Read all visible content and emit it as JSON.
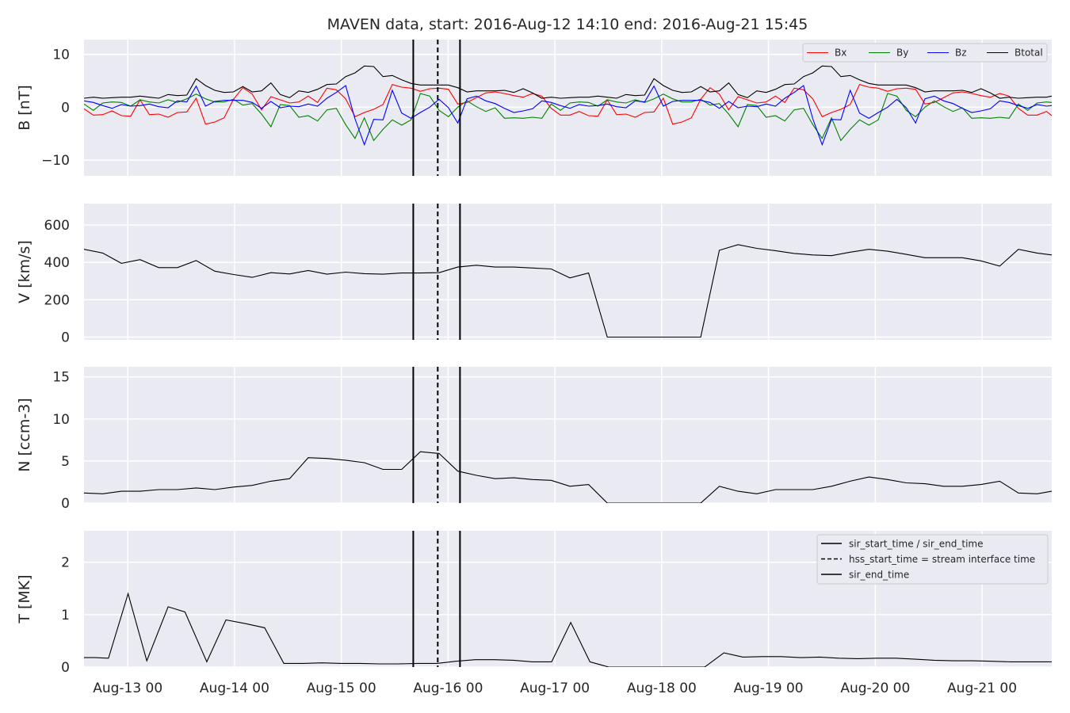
{
  "title": "MAVEN data, start: 2016-Aug-12 14:10  end: 2016-Aug-21 15:45",
  "x_tick_labels": [
    "Aug-13 00",
    "Aug-14 00",
    "Aug-15 00",
    "Aug-16 00",
    "Aug-17 00",
    "Aug-18 00",
    "Aug-19 00",
    "Aug-20 00",
    "Aug-21 00"
  ],
  "markers": [
    {
      "hours_from_start": 74.0,
      "style": "solid"
    },
    {
      "hours_from_start": 79.5,
      "style": "dashed"
    },
    {
      "hours_from_start": 84.5,
      "style": "solid"
    }
  ],
  "legend_lines": {
    "entries": [
      {
        "label": "sir_start_time / sir_end_time",
        "style": "solid"
      },
      {
        "label": "hss_start_time = stream interface time",
        "style": "dashed"
      },
      {
        "label": "sir_end_time",
        "style": "solid"
      }
    ]
  },
  "colors": {
    "Bx": "#ff0000",
    "By": "#008000",
    "Bz": "#0000ff",
    "Btotal": "#000000",
    "background": "#eaeaf2",
    "grid": "#ffffff"
  },
  "chart_data": [
    {
      "type": "line",
      "ylabel": "B [nT]",
      "ylim": [
        -13,
        12.8
      ],
      "yticks": [
        -10,
        0,
        10
      ],
      "legend_position": "top-right",
      "x_units": "hours since 2016-Aug-12 14:10",
      "x": [
        0,
        2.1,
        4.2,
        6.3,
        8.4,
        10.5,
        12.6,
        14.7,
        16.8,
        18.9,
        21,
        23.1,
        25.2,
        27.3,
        29.4,
        31.5,
        33.6,
        35.7,
        37.8,
        39.9,
        42,
        44.1,
        46.2,
        48.3,
        50.4,
        52.5,
        54.6,
        56.7,
        58.8,
        60.9,
        63,
        65.1,
        67.2,
        69.3,
        71.4,
        73.5,
        75.6,
        77.7,
        79.8,
        81.9,
        84,
        86.1,
        88.2,
        90.3,
        92.4,
        94.5,
        96.6,
        98.7,
        100.8,
        102.9,
        105,
        107.1,
        109.2,
        111.3,
        113.4,
        115.5,
        117.6,
        119.7,
        121.8,
        123.9,
        126,
        128.1,
        130.2,
        132.3,
        134.4,
        136.5,
        138.6,
        140.7,
        142.8,
        144.9,
        147,
        149.1,
        151.2,
        153.3,
        155.4,
        157.5,
        159.6,
        161.7,
        163.8,
        165.9,
        168,
        170.1,
        172.2,
        174.3,
        176.4,
        178.5,
        180.6,
        182.7,
        184.8,
        186.9,
        189,
        191.1,
        193.2,
        195.3,
        197.4,
        199.5,
        201.6,
        203.7,
        205.8,
        207.9,
        210,
        212.1,
        214.2,
        216.3,
        217.5
      ],
      "series": [
        {
          "name": "Bx",
          "values": [
            -0.3,
            -1.5,
            -1.4,
            -0.7,
            -1.6,
            -1.7,
            1.4,
            -1.4,
            -1.3,
            -1.9,
            -1,
            -0.9,
            1.7,
            -3.2,
            -2.8,
            -2,
            1.5,
            3.7,
            2.5,
            -0.5,
            2,
            1.4,
            0.8,
            1,
            2.1,
            0.9,
            3.6,
            3.3,
            1.6,
            -1.8,
            -1,
            -0.4,
            0.5,
            4.3,
            3.8,
            3.6,
            3,
            3.5,
            3.6,
            3.4,
            0.6,
            0.9,
            1.8,
            2.7,
            2.9,
            2.6,
            2.2,
            1.9,
            2.6,
            2.1,
            -0.2,
            -1.5,
            -1.5,
            -0.8,
            -1.6,
            -1.7,
            1.4,
            -1.4,
            -1.3,
            -1.9,
            -1,
            -0.9,
            1.7,
            -3.2,
            -2.8,
            -2,
            1.5,
            3.7,
            2.5,
            -0.5,
            2,
            1.4,
            0.8,
            1,
            2.1,
            0.9,
            3.6,
            3.3,
            1.6,
            -1.8,
            -1,
            -0.4,
            0.5,
            4.3,
            3.8,
            3.6,
            3,
            3.5,
            3.6,
            3.4,
            0.6,
            0.9,
            1.8,
            2.7,
            2.9,
            2.6,
            2.2,
            1.9,
            2.6,
            2.1,
            -0.2,
            -1.5,
            -1.5,
            -0.8,
            -1.6
          ]
        },
        {
          "name": "By",
          "values": [
            0.6,
            -0.6,
            0.8,
            1,
            0.9,
            0.2,
            1.4,
            1,
            0.8,
            1.4,
            0.9,
            1.6,
            2.5,
            1.6,
            1,
            1,
            1.5,
            0.4,
            0.7,
            -1.3,
            -3.7,
            0.5,
            0.3,
            -1.9,
            -1.6,
            -2.6,
            -0.5,
            -0.2,
            -3.3,
            -5.9,
            -2,
            -6.3,
            -4.2,
            -2.4,
            -3.4,
            -2.4,
            2.6,
            2.1,
            -0.6,
            -1.8,
            0,
            1.2,
            0.1,
            -0.8,
            -0.1,
            -2.1,
            -2,
            -2.1,
            -1.9,
            -2.1,
            0.6,
            -0.6,
            0.8,
            1,
            0.9,
            0.2,
            1.4,
            1,
            0.8,
            1.4,
            0.9,
            1.6,
            2.5,
            1.6,
            1,
            1,
            1.5,
            0.4,
            0.7,
            -1.3,
            -3.7,
            0.5,
            0.3,
            -1.9,
            -1.6,
            -2.6,
            -0.5,
            -0.2,
            -3.3,
            -5.9,
            -2,
            -6.3,
            -4.2,
            -2.4,
            -3.4,
            -2.4,
            2.6,
            2.1,
            -0.6,
            -1.8,
            0,
            1.2,
            0.1,
            -0.8,
            -0.1,
            -2.1,
            -2,
            -2.1,
            -1.9,
            -2.1,
            0.6,
            -0.6,
            0.8,
            1,
            0.9
          ]
        },
        {
          "name": "Bz",
          "values": [
            1.2,
            0.9,
            0.3,
            -0.2,
            0.5,
            0.2,
            0.3,
            0.6,
            0.1,
            -0.1,
            1.2,
            1,
            4,
            0.2,
            1.1,
            1.3,
            1.3,
            1.3,
            0.9,
            -0.2,
            1.1,
            -0.1,
            0.2,
            0.1,
            0.6,
            0.2,
            1.7,
            2.8,
            4.1,
            -2.2,
            -7.1,
            -2.3,
            -2.4,
            3.2,
            -1.1,
            -2.1,
            -1,
            0,
            1.5,
            -0.1,
            -3,
            1.6,
            2.1,
            1.2,
            0.7,
            -0.2,
            -1,
            -0.7,
            -0.3,
            1.2,
            0.9,
            0.3,
            -0.2,
            0.5,
            0.2,
            0.3,
            0.6,
            0.1,
            -0.1,
            1.2,
            1,
            4,
            0.2,
            1.1,
            1.3,
            1.3,
            1.3,
            0.9,
            -0.2,
            1.1,
            -0.1,
            0.2,
            0.1,
            0.6,
            0.2,
            1.7,
            2.8,
            4.1,
            -2.2,
            -7.1,
            -2.3,
            -2.4,
            3.2,
            -1.1,
            -2.1,
            -1,
            0,
            1.5,
            -0.1,
            -3,
            1.6,
            2.1,
            1.2,
            0.7,
            -0.2,
            -1,
            -0.7,
            -0.3,
            1.2,
            0.9,
            0.3,
            -0.2,
            0.5,
            0.2,
            0.3
          ]
        },
        {
          "name": "Btotal",
          "values": [
            1.7,
            1.9,
            1.7,
            1.8,
            1.9,
            1.9,
            2.1,
            1.9,
            1.7,
            2.4,
            2.2,
            2.3,
            5.4,
            4.1,
            3.2,
            2.8,
            2.9,
            3.9,
            2.9,
            3.1,
            4.6,
            2.4,
            1.8,
            3.1,
            2.8,
            3.4,
            4.3,
            4.4,
            5.8,
            6.5,
            7.8,
            7.7,
            5.8,
            6,
            5.2,
            4.5,
            4.2,
            4.2,
            4.2,
            4.2,
            3.7,
            2.9,
            3.1,
            3.1,
            3.1,
            3.2,
            2.8,
            3.5,
            2.7,
            1.7,
            1.9,
            1.7,
            1.8,
            1.9,
            1.9,
            2.1,
            1.9,
            1.7,
            2.4,
            2.2,
            2.3,
            5.4,
            4.1,
            3.2,
            2.8,
            2.9,
            3.9,
            2.9,
            3.1,
            4.6,
            2.4,
            1.8,
            3.1,
            2.8,
            3.4,
            4.3,
            4.4,
            5.8,
            6.5,
            7.8,
            7.7,
            5.8,
            6,
            5.2,
            4.5,
            4.2,
            4.2,
            4.2,
            4.2,
            3.7,
            2.9,
            3.1,
            3.1,
            3.1,
            3.2,
            2.8,
            3.5,
            2.7,
            1.7,
            1.9,
            1.7,
            1.8,
            1.9,
            1.9,
            2.1
          ]
        }
      ]
    },
    {
      "type": "line",
      "ylabel": "V [km/s]",
      "ylim": [
        -15,
        715
      ],
      "yticks": [
        0,
        200,
        400,
        600
      ],
      "x_units": "hours since 2016-Aug-12 14:10",
      "series": [
        {
          "name": "V",
          "x": [
            0,
            4.2,
            8.4,
            12.6,
            16.8,
            21,
            25.2,
            29.4,
            33.6,
            37.8,
            42,
            46.2,
            50.4,
            54.6,
            58.8,
            63,
            67.2,
            71.4,
            75.6,
            79.8,
            84,
            88.2,
            92.4,
            96.6,
            100.8,
            105,
            109.2,
            113.4,
            117.6,
            121.8,
            126,
            130.2,
            134.4,
            138.6,
            142.8,
            147,
            151.2,
            155.4,
            159.6,
            163.8,
            168,
            172.2,
            176.4,
            180.6,
            184.8,
            189,
            193.2,
            197.4,
            201.6,
            205.8,
            210,
            214.2,
            217.5
          ],
          "values": [
            470,
            450,
            395,
            415,
            372,
            372,
            410,
            353,
            335,
            320,
            345,
            338,
            357,
            337,
            348,
            340,
            337,
            343,
            343,
            345,
            375,
            385,
            375,
            375,
            370,
            365,
            317,
            343,
            0,
            0,
            0,
            0,
            0,
            0,
            465,
            495,
            475,
            463,
            448,
            440,
            436,
            455,
            470,
            460,
            443,
            425,
            425,
            425,
            408,
            380,
            470,
            450,
            440
          ]
        }
      ]
    },
    {
      "type": "line",
      "ylabel": "N [ccm-3]",
      "ylim": [
        0,
        16.2
      ],
      "yticks": [
        0,
        5,
        10,
        15
      ],
      "x_units": "hours since 2016-Aug-12 14:10",
      "series": [
        {
          "name": "N",
          "x": [
            0,
            4.2,
            8.4,
            12.6,
            16.8,
            21,
            25.2,
            29.4,
            33.6,
            37.8,
            42,
            46.2,
            50.4,
            54.6,
            58.8,
            63,
            67.2,
            71.4,
            75.6,
            79.8,
            84,
            88.2,
            92.4,
            96.6,
            100.8,
            105,
            109.2,
            113.4,
            117.6,
            121.8,
            126,
            130.2,
            134.4,
            138.6,
            142.8,
            147,
            151.2,
            155.4,
            159.6,
            163.8,
            168,
            172.2,
            176.4,
            180.6,
            184.8,
            189,
            193.2,
            197.4,
            201.6,
            205.8,
            210,
            214.2,
            217.5
          ],
          "values": [
            1.2,
            1.1,
            1.4,
            1.4,
            1.6,
            1.6,
            1.8,
            1.6,
            1.9,
            2.1,
            2.6,
            2.9,
            5.4,
            5.3,
            5.1,
            4.8,
            4,
            4,
            6.1,
            5.9,
            3.8,
            3.3,
            2.9,
            3,
            2.8,
            2.7,
            2,
            2.2,
            0,
            0,
            0,
            0,
            0,
            0,
            2,
            1.4,
            1.1,
            1.6,
            1.6,
            1.6,
            2,
            2.6,
            3.1,
            2.8,
            2.4,
            2.3,
            2,
            2,
            2.2,
            2.6,
            1.2,
            1.1,
            1.4
          ]
        }
      ]
    },
    {
      "type": "line",
      "ylabel": "T [MK]",
      "ylim": [
        0,
        2.6
      ],
      "yticks": [
        0,
        1,
        2
      ],
      "legend_position": "top-right",
      "x_units": "hours since 2016-Aug-12 14:10",
      "series": [
        {
          "name": "T",
          "x": [
            0,
            2.5,
            5.5,
            9.9,
            14.1,
            18.9,
            22.7,
            27.6,
            31.9,
            36.2,
            40.6,
            44.9,
            49.2,
            53.5,
            57.8,
            62.1,
            66.4,
            70.7,
            75,
            79.3,
            83.6,
            87.9,
            92.2,
            96.5,
            100.8,
            105.1,
            109.4,
            113.7,
            117.9,
            122.3,
            126.6,
            130.9,
            135.2,
            139.5,
            143.8,
            148.1,
            152.4,
            156.7,
            161,
            165.3,
            169.6,
            173.9,
            178.2,
            182.5,
            186.8,
            191.1,
            195.4,
            199.7,
            204,
            208.3,
            212.6,
            217.5
          ],
          "values": [
            0.18,
            0.18,
            0.17,
            1.4,
            0.12,
            1.15,
            1.05,
            0.1,
            0.9,
            0.83,
            0.75,
            0.07,
            0.07,
            0.08,
            0.07,
            0.07,
            0.06,
            0.06,
            0.07,
            0.07,
            0.11,
            0.14,
            0.14,
            0.13,
            0.1,
            0.1,
            0.85,
            0.1,
            0,
            0,
            0,
            0,
            0,
            0,
            0.27,
            0.19,
            0.2,
            0.2,
            0.18,
            0.19,
            0.17,
            0.16,
            0.17,
            0.17,
            0.15,
            0.13,
            0.12,
            0.12,
            0.11,
            0.1,
            0.1,
            0.1
          ]
        }
      ]
    }
  ]
}
